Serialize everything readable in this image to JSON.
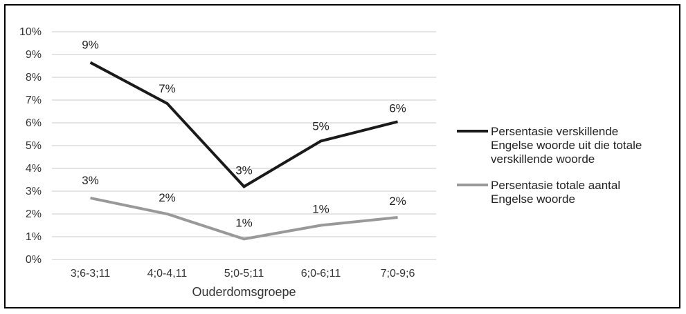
{
  "chart_data": {
    "type": "line",
    "xlabel": "Ouderdomsgroepe",
    "ylabel": "",
    "ylim": [
      0,
      10
    ],
    "y_ticks": [
      "0%",
      "1%",
      "2%",
      "3%",
      "4%",
      "5%",
      "6%",
      "7%",
      "8%",
      "9%",
      "10%"
    ],
    "categories": [
      "3;6-3;11",
      "4;0-4,11",
      "5;0-5;11",
      "6;0-6;11",
      "7;0-9;6"
    ],
    "grid": true,
    "legend_position": "right",
    "series": [
      {
        "name_lines": [
          "Persentasie verskillende",
          "Engelse woorde uit die totale",
          "verskillende woorde"
        ],
        "color": "#1a1a1a",
        "values": [
          8.65,
          6.85,
          3.2,
          5.2,
          6.05
        ],
        "labels": [
          "9%",
          "7%",
          "3%",
          "5%",
          "6%"
        ]
      },
      {
        "name_lines": [
          "Persentasie totale aantal",
          "Engelse woorde"
        ],
        "color": "#999999",
        "values": [
          2.7,
          2.0,
          0.9,
          1.5,
          1.85
        ],
        "labels": [
          "3%",
          "2%",
          "1%",
          "1%",
          "2%"
        ]
      }
    ]
  }
}
